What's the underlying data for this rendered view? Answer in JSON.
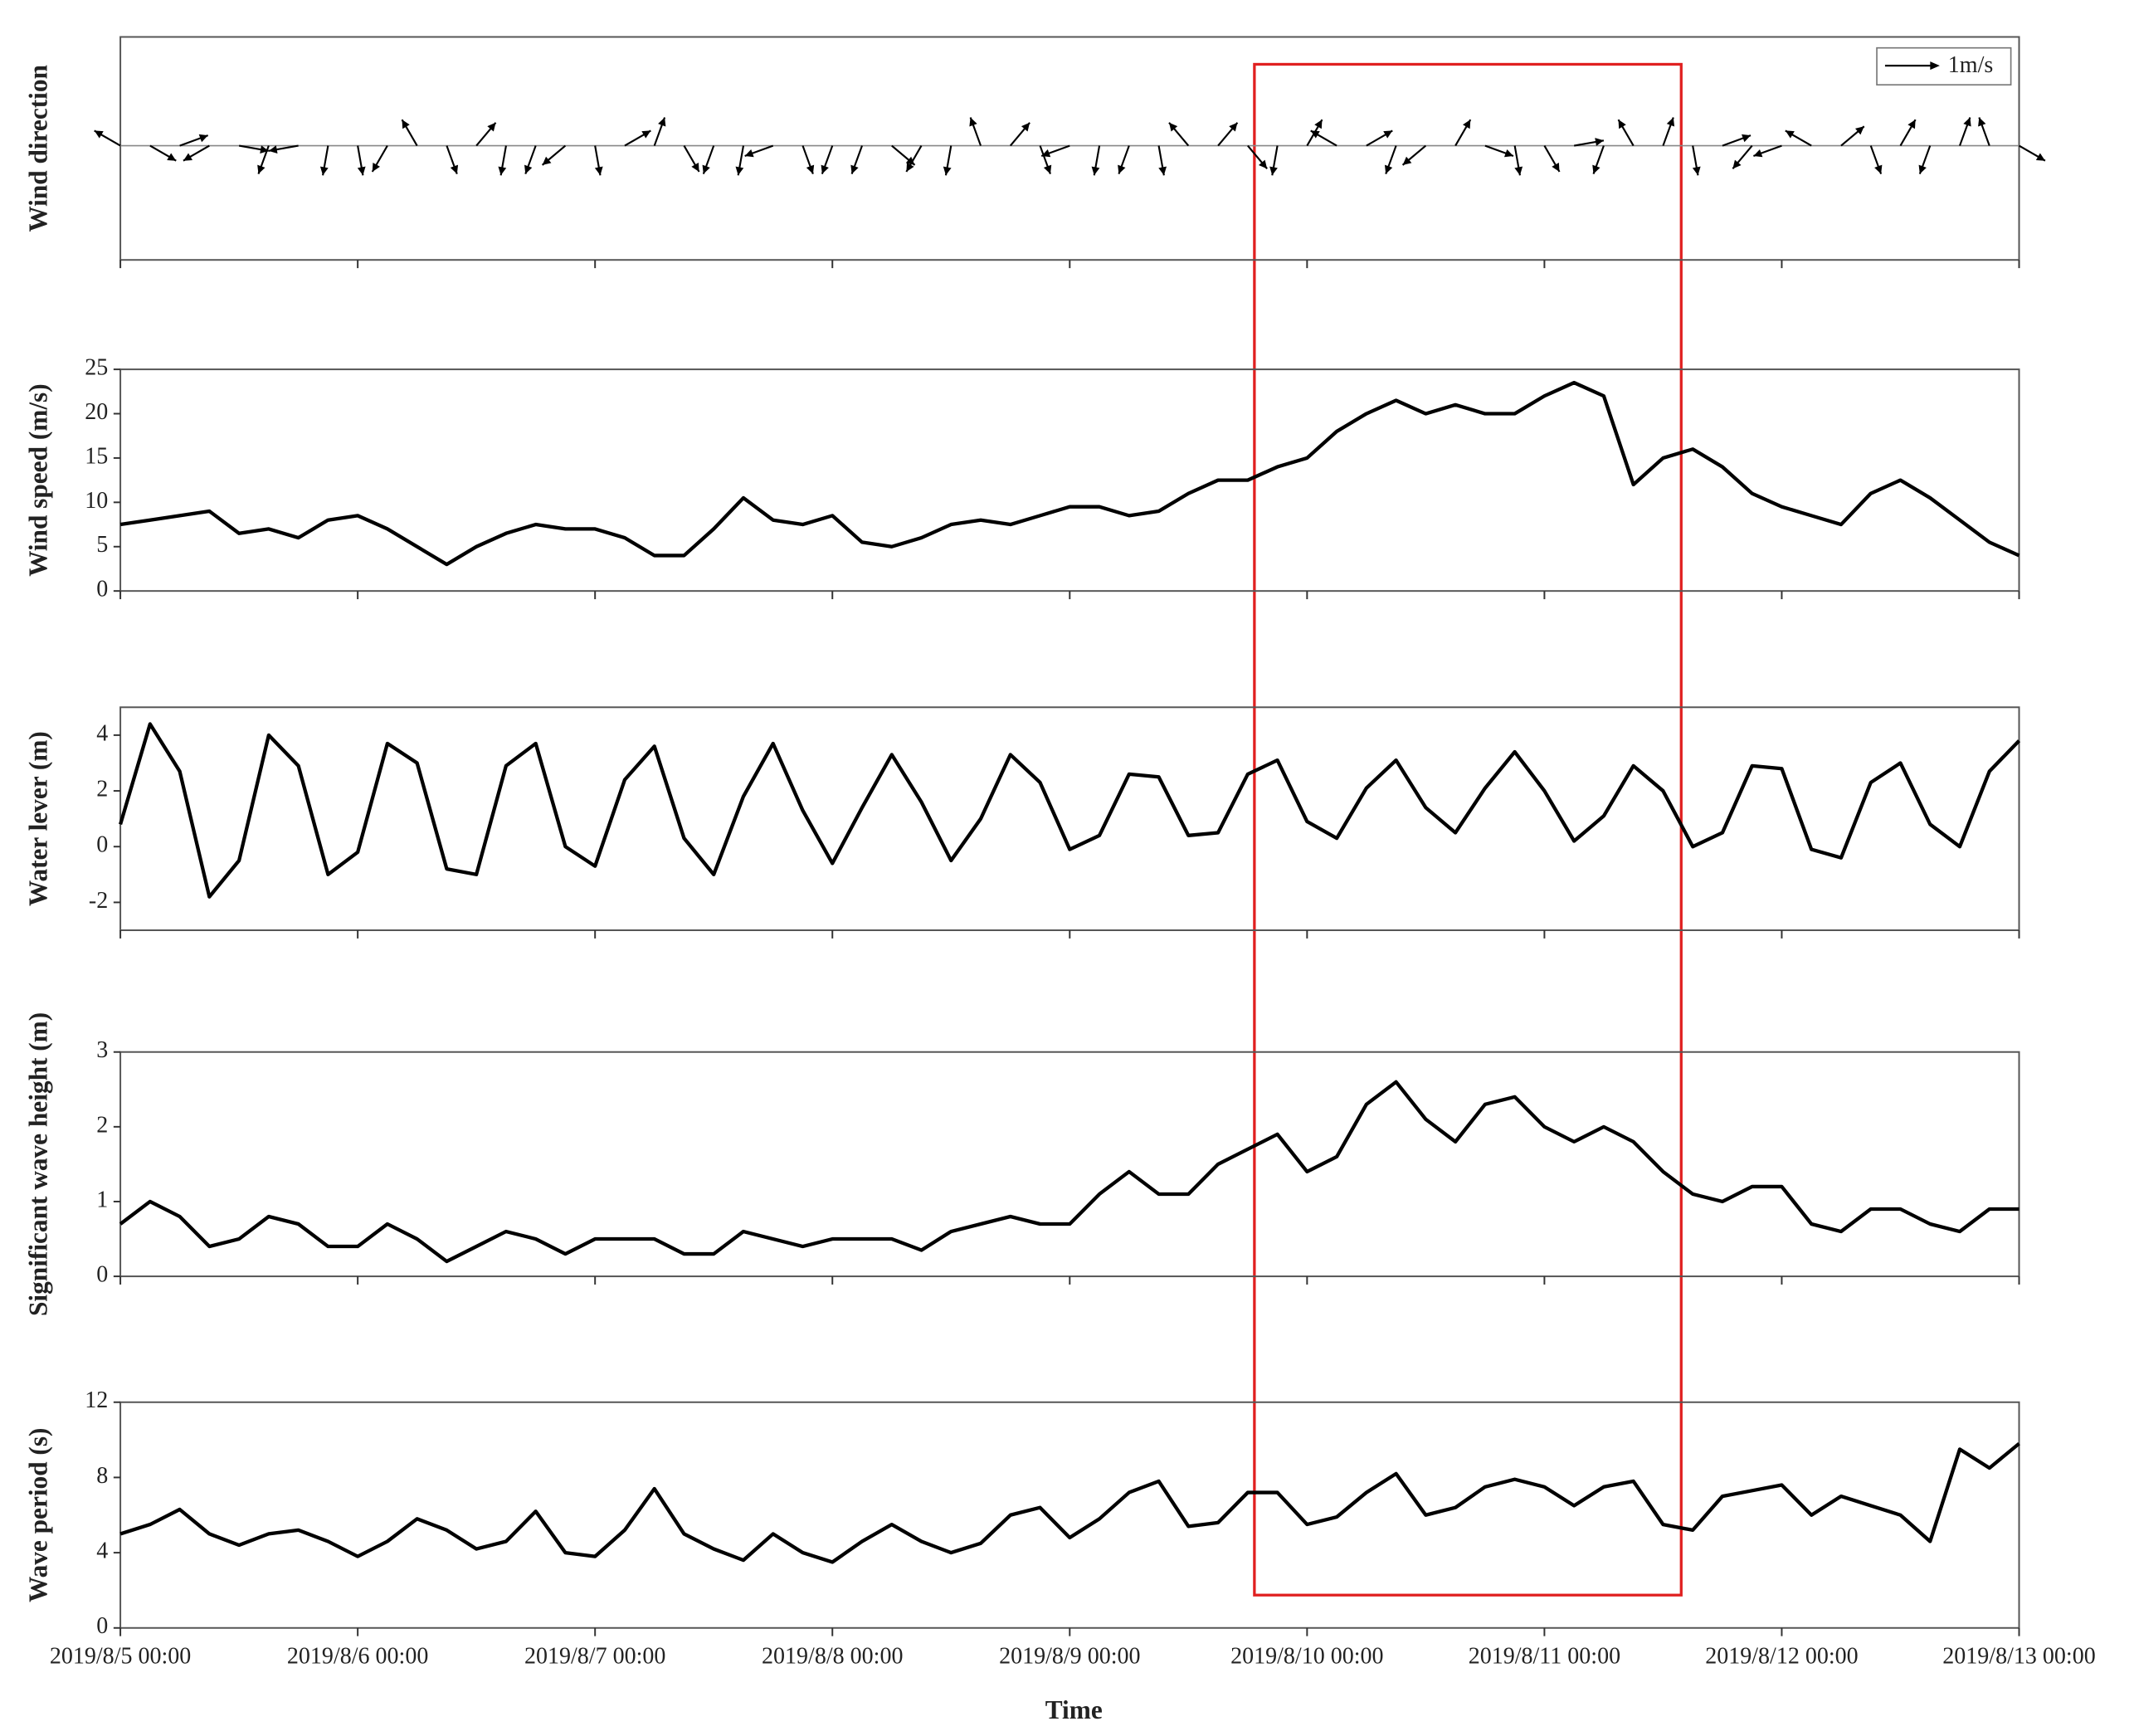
{
  "chart_data": {
    "xlabel": "Time",
    "x": [
      "2019/8/5 00:00",
      "2019/8/5 03:00",
      "2019/8/5 06:00",
      "2019/8/5 09:00",
      "2019/8/5 12:00",
      "2019/8/5 15:00",
      "2019/8/5 18:00",
      "2019/8/5 21:00",
      "2019/8/6 00:00",
      "2019/8/6 03:00",
      "2019/8/6 06:00",
      "2019/8/6 09:00",
      "2019/8/6 12:00",
      "2019/8/6 15:00",
      "2019/8/6 18:00",
      "2019/8/6 21:00",
      "2019/8/7 00:00",
      "2019/8/7 03:00",
      "2019/8/7 06:00",
      "2019/8/7 09:00",
      "2019/8/7 12:00",
      "2019/8/7 15:00",
      "2019/8/7 18:00",
      "2019/8/7 21:00",
      "2019/8/8 00:00",
      "2019/8/8 03:00",
      "2019/8/8 06:00",
      "2019/8/8 09:00",
      "2019/8/8 12:00",
      "2019/8/8 15:00",
      "2019/8/8 18:00",
      "2019/8/8 21:00",
      "2019/8/9 00:00",
      "2019/8/9 03:00",
      "2019/8/9 06:00",
      "2019/8/9 09:00",
      "2019/8/9 12:00",
      "2019/8/9 15:00",
      "2019/8/9 18:00",
      "2019/8/9 21:00",
      "2019/8/10 00:00",
      "2019/8/10 03:00",
      "2019/8/10 06:00",
      "2019/8/10 09:00",
      "2019/8/10 12:00",
      "2019/8/10 15:00",
      "2019/8/10 18:00",
      "2019/8/10 21:00",
      "2019/8/11 00:00",
      "2019/8/11 03:00",
      "2019/8/11 06:00",
      "2019/8/11 09:00",
      "2019/8/11 12:00",
      "2019/8/11 15:00",
      "2019/8/11 18:00",
      "2019/8/11 21:00",
      "2019/8/12 00:00",
      "2019/8/12 03:00",
      "2019/8/12 06:00",
      "2019/8/12 09:00",
      "2019/8/12 12:00",
      "2019/8/12 15:00",
      "2019/8/12 18:00",
      "2019/8/12 21:00",
      "2019/8/13 00:00"
    ],
    "xlim": [
      "2019/8/5 00:00",
      "2019/8/13 00:00"
    ],
    "xticks": [
      "2019/8/5 00:00",
      "2019/8/6 00:00",
      "2019/8/7 00:00",
      "2019/8/8 00:00",
      "2019/8/9 00:00",
      "2019/8/10 00:00",
      "2019/8/11 00:00",
      "2019/8/12 00:00",
      "2019/8/13 00:00"
    ],
    "panels": [
      {
        "type": "vector",
        "ylabel": "Wind direction",
        "legend": "1m/s",
        "color": "#000000",
        "series": [
          {
            "values": [
              300,
              120,
              70,
              240,
              100,
              200,
              260,
              190,
              170,
              210,
              330,
              160,
              40,
              190,
              200,
              230,
              170,
              60,
              20,
              150,
              200,
              190,
              250,
              160,
              200,
              200,
              130,
              210,
              190,
              340,
              40,
              160,
              250,
              190,
              200,
              170,
              320,
              40,
              140,
              190,
              30,
              300,
              60,
              200,
              230,
              30,
              110,
              170,
              150,
              80,
              200,
              330,
              20,
              170,
              70,
              220,
              250,
              300,
              50,
              160,
              30,
              200,
              20,
              340,
              120
            ]
          }
        ]
      },
      {
        "type": "line",
        "ylabel": "Wind speed (m/s)",
        "ylim": [
          0,
          25
        ],
        "yticks": [
          0,
          5,
          10,
          15,
          20,
          25
        ],
        "color": "#000000",
        "series": [
          {
            "values": [
              7.5,
              8,
              8.5,
              9,
              6.5,
              7,
              6,
              8,
              8.5,
              7,
              5,
              3,
              5,
              6.5,
              7.5,
              7,
              7,
              6,
              4,
              4,
              7,
              10.5,
              8,
              7.5,
              8.5,
              5.5,
              5,
              6,
              7.5,
              8,
              7.5,
              8.5,
              9.5,
              9.5,
              8.5,
              9,
              11,
              12.5,
              12.5,
              14,
              15,
              18,
              20,
              21.5,
              20,
              21,
              20,
              20,
              22,
              23.5,
              22,
              12,
              15,
              16,
              14,
              11,
              9.5,
              8.5,
              7.5,
              11,
              12.5,
              10.5,
              8,
              5.5,
              4
            ]
          }
        ]
      },
      {
        "type": "line",
        "ylabel": "Water lever (m)",
        "ylim": [
          -3,
          5
        ],
        "yticks": [
          -2,
          0,
          2,
          4
        ],
        "color": "#000000",
        "series": [
          {
            "values": [
              0.8,
              4.4,
              2.7,
              -1.8,
              -0.5,
              4.0,
              2.9,
              -1.0,
              -0.2,
              3.7,
              3.0,
              -0.8,
              -1.0,
              2.9,
              3.7,
              0.0,
              -0.7,
              2.4,
              3.6,
              0.3,
              -1.0,
              1.8,
              3.7,
              1.3,
              -0.6,
              1.4,
              3.3,
              1.6,
              -0.5,
              1.0,
              3.3,
              2.3,
              -0.1,
              0.4,
              2.6,
              2.5,
              0.4,
              0.5,
              2.6,
              3.1,
              0.9,
              0.3,
              2.1,
              3.1,
              1.4,
              0.5,
              2.1,
              3.4,
              2.0,
              0.2,
              1.1,
              2.9,
              2.0,
              0.0,
              0.5,
              2.9,
              2.8,
              -0.1,
              -0.4,
              2.3,
              3.0,
              0.8,
              0.0,
              2.7,
              3.8
            ]
          }
        ]
      },
      {
        "type": "line",
        "ylabel": "Significant wave height (m)",
        "ylim": [
          0,
          3
        ],
        "yticks": [
          0,
          1,
          2,
          3
        ],
        "color": "#000000",
        "series": [
          {
            "values": [
              0.7,
              1.0,
              0.8,
              0.4,
              0.5,
              0.8,
              0.7,
              0.4,
              0.4,
              0.7,
              0.5,
              0.2,
              0.4,
              0.6,
              0.5,
              0.3,
              0.5,
              0.5,
              0.5,
              0.3,
              0.3,
              0.6,
              0.5,
              0.4,
              0.5,
              0.5,
              0.5,
              0.35,
              0.6,
              0.7,
              0.8,
              0.7,
              0.7,
              1.1,
              1.4,
              1.1,
              1.1,
              1.5,
              1.7,
              1.9,
              1.4,
              1.6,
              2.3,
              2.6,
              2.1,
              1.8,
              2.3,
              2.4,
              2.0,
              1.8,
              2.0,
              1.8,
              1.4,
              1.1,
              1.0,
              1.2,
              1.2,
              0.7,
              0.6,
              0.9,
              0.9,
              0.7,
              0.6,
              0.9,
              0.9
            ]
          }
        ]
      },
      {
        "type": "line",
        "ylabel": "Wave period (s)",
        "ylim": [
          0,
          12
        ],
        "yticks": [
          0,
          4,
          8,
          12
        ],
        "color": "#000000",
        "series": [
          {
            "values": [
              5.0,
              5.5,
              6.3,
              5.0,
              4.4,
              5.0,
              5.2,
              4.6,
              3.8,
              4.6,
              5.8,
              5.2,
              4.2,
              4.6,
              6.2,
              4.0,
              3.8,
              5.2,
              7.4,
              5.0,
              4.2,
              3.6,
              5.0,
              4.0,
              3.5,
              4.6,
              5.5,
              4.6,
              4.0,
              4.5,
              6.0,
              6.4,
              4.8,
              5.8,
              7.2,
              7.8,
              5.4,
              5.6,
              7.2,
              7.2,
              5.5,
              5.9,
              7.2,
              8.2,
              6.0,
              6.4,
              7.5,
              7.9,
              7.5,
              6.5,
              7.5,
              7.8,
              5.5,
              5.2,
              7.0,
              7.3,
              7.6,
              6.0,
              7.0,
              6.5,
              6.0,
              4.6,
              9.5,
              8.5,
              9.8
            ]
          }
        ]
      }
    ]
  }
}
